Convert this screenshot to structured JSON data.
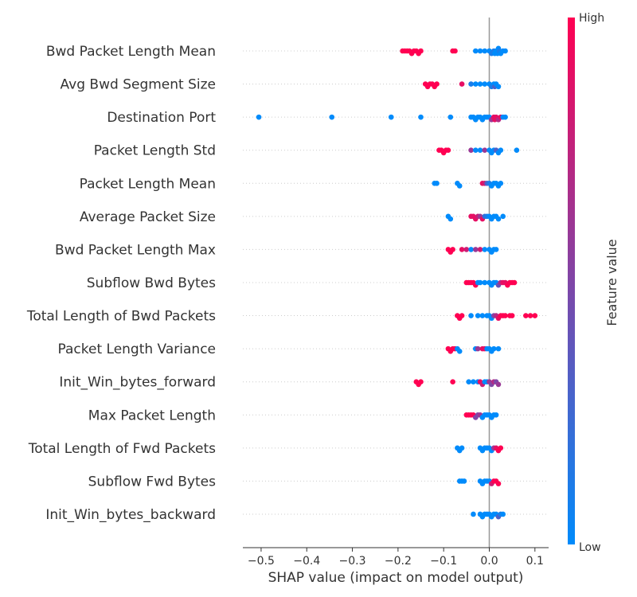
{
  "chart_data": {
    "type": "scatter",
    "subtype": "shap-beeswarm",
    "xlabel": "SHAP value (impact on model output)",
    "xlim": [
      -0.54,
      0.13
    ],
    "xticks": [
      -0.5,
      -0.4,
      -0.3,
      -0.2,
      -0.1,
      0.0,
      0.1
    ],
    "xtick_labels": [
      "−0.5",
      "−0.4",
      "−0.3",
      "−0.2",
      "−0.1",
      "0.0",
      "0.1"
    ],
    "colorbar": {
      "label": "Feature value",
      "high_label": "High",
      "low_label": "Low",
      "low_color": "#008bfb",
      "high_color": "#ff0052"
    },
    "colors": {
      "zero_line": "#999999",
      "row_line": "#cccccc",
      "text": "#333333"
    },
    "features": [
      {
        "name": "Bwd Packet Length Mean",
        "points": [
          [
            -0.19,
            1
          ],
          [
            -0.185,
            1
          ],
          [
            -0.18,
            1
          ],
          [
            -0.175,
            1
          ],
          [
            -0.17,
            1
          ],
          [
            -0.165,
            1
          ],
          [
            -0.16,
            1
          ],
          [
            -0.155,
            1
          ],
          [
            -0.15,
            1
          ],
          [
            -0.08,
            1
          ],
          [
            -0.075,
            1
          ],
          [
            -0.03,
            0
          ],
          [
            -0.02,
            0
          ],
          [
            -0.01,
            0
          ],
          [
            0.0,
            0
          ],
          [
            0.005,
            0.1
          ],
          [
            0.01,
            0.1
          ],
          [
            0.012,
            0
          ],
          [
            0.015,
            0
          ],
          [
            0.018,
            0
          ],
          [
            0.02,
            0
          ],
          [
            0.022,
            0.1
          ],
          [
            0.025,
            0
          ],
          [
            0.03,
            0
          ],
          [
            0.035,
            0
          ]
        ]
      },
      {
        "name": "Avg Bwd Segment Size",
        "points": [
          [
            -0.14,
            1
          ],
          [
            -0.135,
            1
          ],
          [
            -0.13,
            1
          ],
          [
            -0.125,
            1
          ],
          [
            -0.12,
            1
          ],
          [
            -0.115,
            1
          ],
          [
            -0.06,
            0.9
          ],
          [
            -0.04,
            0.1
          ],
          [
            -0.03,
            0
          ],
          [
            -0.02,
            0
          ],
          [
            -0.01,
            0
          ],
          [
            0.0,
            0
          ],
          [
            0.005,
            0.1
          ],
          [
            0.01,
            0
          ],
          [
            0.012,
            0.3
          ],
          [
            0.015,
            0
          ],
          [
            0.02,
            0
          ]
        ]
      },
      {
        "name": "Destination Port",
        "points": [
          [
            -0.505,
            0
          ],
          [
            -0.345,
            0
          ],
          [
            -0.215,
            0
          ],
          [
            -0.15,
            0
          ],
          [
            -0.085,
            0
          ],
          [
            -0.04,
            0
          ],
          [
            -0.035,
            0
          ],
          [
            -0.03,
            0
          ],
          [
            -0.025,
            0
          ],
          [
            -0.02,
            0
          ],
          [
            -0.015,
            0
          ],
          [
            -0.01,
            0
          ],
          [
            -0.005,
            0
          ],
          [
            0.0,
            0
          ],
          [
            0.005,
            0.6
          ],
          [
            0.01,
            0.9
          ],
          [
            0.012,
            0.9
          ],
          [
            0.015,
            0.9
          ],
          [
            0.02,
            0.7
          ],
          [
            0.025,
            0.9
          ],
          [
            0.03,
            0
          ],
          [
            0.035,
            0
          ]
        ]
      },
      {
        "name": "Packet Length Std",
        "points": [
          [
            -0.11,
            1
          ],
          [
            -0.105,
            1
          ],
          [
            -0.1,
            1
          ],
          [
            -0.095,
            1
          ],
          [
            -0.09,
            1
          ],
          [
            -0.04,
            0.6
          ],
          [
            -0.03,
            0
          ],
          [
            -0.02,
            0
          ],
          [
            -0.01,
            0.6
          ],
          [
            0.0,
            0
          ],
          [
            0.005,
            0
          ],
          [
            0.01,
            0
          ],
          [
            0.015,
            0.3
          ],
          [
            0.02,
            0
          ],
          [
            0.025,
            0
          ],
          [
            0.06,
            0
          ]
        ]
      },
      {
        "name": "Packet Length Mean",
        "points": [
          [
            -0.12,
            0
          ],
          [
            -0.115,
            0
          ],
          [
            -0.07,
            0
          ],
          [
            -0.065,
            0
          ],
          [
            -0.015,
            0.9
          ],
          [
            -0.01,
            0.8
          ],
          [
            -0.005,
            0.3
          ],
          [
            0.0,
            0.1
          ],
          [
            0.005,
            0
          ],
          [
            0.01,
            0
          ],
          [
            0.015,
            0
          ],
          [
            0.02,
            0
          ],
          [
            0.025,
            0
          ]
        ]
      },
      {
        "name": "Average Packet Size",
        "points": [
          [
            -0.09,
            0
          ],
          [
            -0.085,
            0
          ],
          [
            -0.04,
            0.9
          ],
          [
            -0.035,
            0.9
          ],
          [
            -0.03,
            0.9
          ],
          [
            -0.025,
            0.8
          ],
          [
            -0.02,
            0.6
          ],
          [
            -0.015,
            0.9
          ],
          [
            -0.01,
            0.2
          ],
          [
            -0.005,
            0.1
          ],
          [
            0.0,
            0
          ],
          [
            0.005,
            0
          ],
          [
            0.01,
            0
          ],
          [
            0.015,
            0
          ],
          [
            0.02,
            0
          ],
          [
            0.03,
            0
          ]
        ]
      },
      {
        "name": "Bwd Packet Length Max",
        "points": [
          [
            -0.09,
            1
          ],
          [
            -0.085,
            1
          ],
          [
            -0.08,
            1
          ],
          [
            -0.06,
            0.9
          ],
          [
            -0.05,
            0.8
          ],
          [
            -0.04,
            0
          ],
          [
            -0.03,
            0.6
          ],
          [
            -0.02,
            0.8
          ],
          [
            -0.01,
            0
          ],
          [
            0.0,
            0
          ],
          [
            0.005,
            0
          ],
          [
            0.01,
            0
          ],
          [
            0.015,
            0
          ]
        ]
      },
      {
        "name": "Subflow Bwd Bytes",
        "points": [
          [
            -0.05,
            1
          ],
          [
            -0.045,
            1
          ],
          [
            -0.04,
            1
          ],
          [
            -0.035,
            1
          ],
          [
            -0.03,
            1
          ],
          [
            -0.025,
            0
          ],
          [
            -0.02,
            0
          ],
          [
            -0.01,
            0
          ],
          [
            0.0,
            0
          ],
          [
            0.005,
            0
          ],
          [
            0.01,
            0
          ],
          [
            0.015,
            0
          ],
          [
            0.02,
            0.4
          ],
          [
            0.025,
            0.7
          ],
          [
            0.03,
            0.9
          ],
          [
            0.035,
            0.9
          ],
          [
            0.04,
            1
          ],
          [
            0.045,
            1
          ],
          [
            0.05,
            1
          ],
          [
            0.055,
            1
          ]
        ]
      },
      {
        "name": "Total Length of Bwd Packets",
        "points": [
          [
            -0.07,
            1
          ],
          [
            -0.065,
            1
          ],
          [
            -0.06,
            1
          ],
          [
            -0.04,
            0
          ],
          [
            -0.025,
            0
          ],
          [
            -0.015,
            0
          ],
          [
            -0.005,
            0
          ],
          [
            0.0,
            0
          ],
          [
            0.005,
            0
          ],
          [
            0.01,
            0.5
          ],
          [
            0.015,
            0.7
          ],
          [
            0.02,
            0.9
          ],
          [
            0.025,
            1
          ],
          [
            0.03,
            1
          ],
          [
            0.035,
            1
          ],
          [
            0.045,
            1
          ],
          [
            0.05,
            1
          ],
          [
            0.08,
            1
          ],
          [
            0.09,
            1
          ],
          [
            0.1,
            1
          ]
        ]
      },
      {
        "name": "Packet Length Variance",
        "points": [
          [
            -0.09,
            1
          ],
          [
            -0.085,
            1
          ],
          [
            -0.08,
            1
          ],
          [
            -0.075,
            1
          ],
          [
            -0.07,
            0
          ],
          [
            -0.065,
            0
          ],
          [
            -0.03,
            0
          ],
          [
            -0.025,
            0.6
          ],
          [
            -0.015,
            0.9
          ],
          [
            -0.01,
            0.9
          ],
          [
            -0.005,
            0
          ],
          [
            0.0,
            0
          ],
          [
            0.005,
            0
          ],
          [
            0.01,
            0
          ],
          [
            0.02,
            0
          ]
        ]
      },
      {
        "name": "Init_Win_bytes_forward",
        "points": [
          [
            -0.16,
            1
          ],
          [
            -0.155,
            1
          ],
          [
            -0.15,
            1
          ],
          [
            -0.08,
            1
          ],
          [
            -0.045,
            0
          ],
          [
            -0.035,
            0
          ],
          [
            -0.025,
            0
          ],
          [
            -0.02,
            0.9
          ],
          [
            -0.015,
            0.8
          ],
          [
            -0.01,
            0
          ],
          [
            -0.005,
            0
          ],
          [
            0.0,
            0.6
          ],
          [
            0.005,
            0.5
          ],
          [
            0.01,
            0.7
          ],
          [
            0.015,
            0.5
          ],
          [
            0.02,
            0.6
          ]
        ]
      },
      {
        "name": "Max Packet Length",
        "points": [
          [
            -0.05,
            1
          ],
          [
            -0.045,
            1
          ],
          [
            -0.04,
            1
          ],
          [
            -0.035,
            1
          ],
          [
            -0.03,
            0.5
          ],
          [
            -0.025,
            0.5
          ],
          [
            -0.02,
            0.6
          ],
          [
            -0.015,
            0
          ],
          [
            -0.01,
            0
          ],
          [
            -0.005,
            0
          ],
          [
            0.0,
            0
          ],
          [
            0.005,
            0
          ],
          [
            0.01,
            0
          ],
          [
            0.015,
            0
          ]
        ]
      },
      {
        "name": "Total Length of Fwd Packets",
        "points": [
          [
            -0.07,
            0
          ],
          [
            -0.065,
            0
          ],
          [
            -0.06,
            0
          ],
          [
            -0.02,
            0
          ],
          [
            -0.015,
            0
          ],
          [
            -0.01,
            0
          ],
          [
            -0.005,
            0
          ],
          [
            0.0,
            0
          ],
          [
            0.005,
            0
          ],
          [
            0.01,
            0.6
          ],
          [
            0.015,
            0.9
          ],
          [
            0.02,
            1
          ],
          [
            0.025,
            1
          ]
        ]
      },
      {
        "name": "Subflow Fwd Bytes",
        "points": [
          [
            -0.065,
            0
          ],
          [
            -0.06,
            0
          ],
          [
            -0.055,
            0
          ],
          [
            -0.02,
            0
          ],
          [
            -0.015,
            0
          ],
          [
            -0.01,
            0
          ],
          [
            -0.005,
            0
          ],
          [
            0.0,
            0
          ],
          [
            0.005,
            0.8
          ],
          [
            0.01,
            1
          ],
          [
            0.015,
            1
          ],
          [
            0.02,
            1
          ]
        ]
      },
      {
        "name": "Init_Win_bytes_backward",
        "points": [
          [
            -0.035,
            0
          ],
          [
            -0.02,
            0
          ],
          [
            -0.015,
            0
          ],
          [
            -0.01,
            0
          ],
          [
            -0.005,
            0
          ],
          [
            0.0,
            0
          ],
          [
            0.005,
            0
          ],
          [
            0.01,
            0
          ],
          [
            0.015,
            0
          ],
          [
            0.02,
            0.3
          ],
          [
            0.025,
            0.1
          ],
          [
            0.03,
            0
          ]
        ]
      }
    ]
  }
}
